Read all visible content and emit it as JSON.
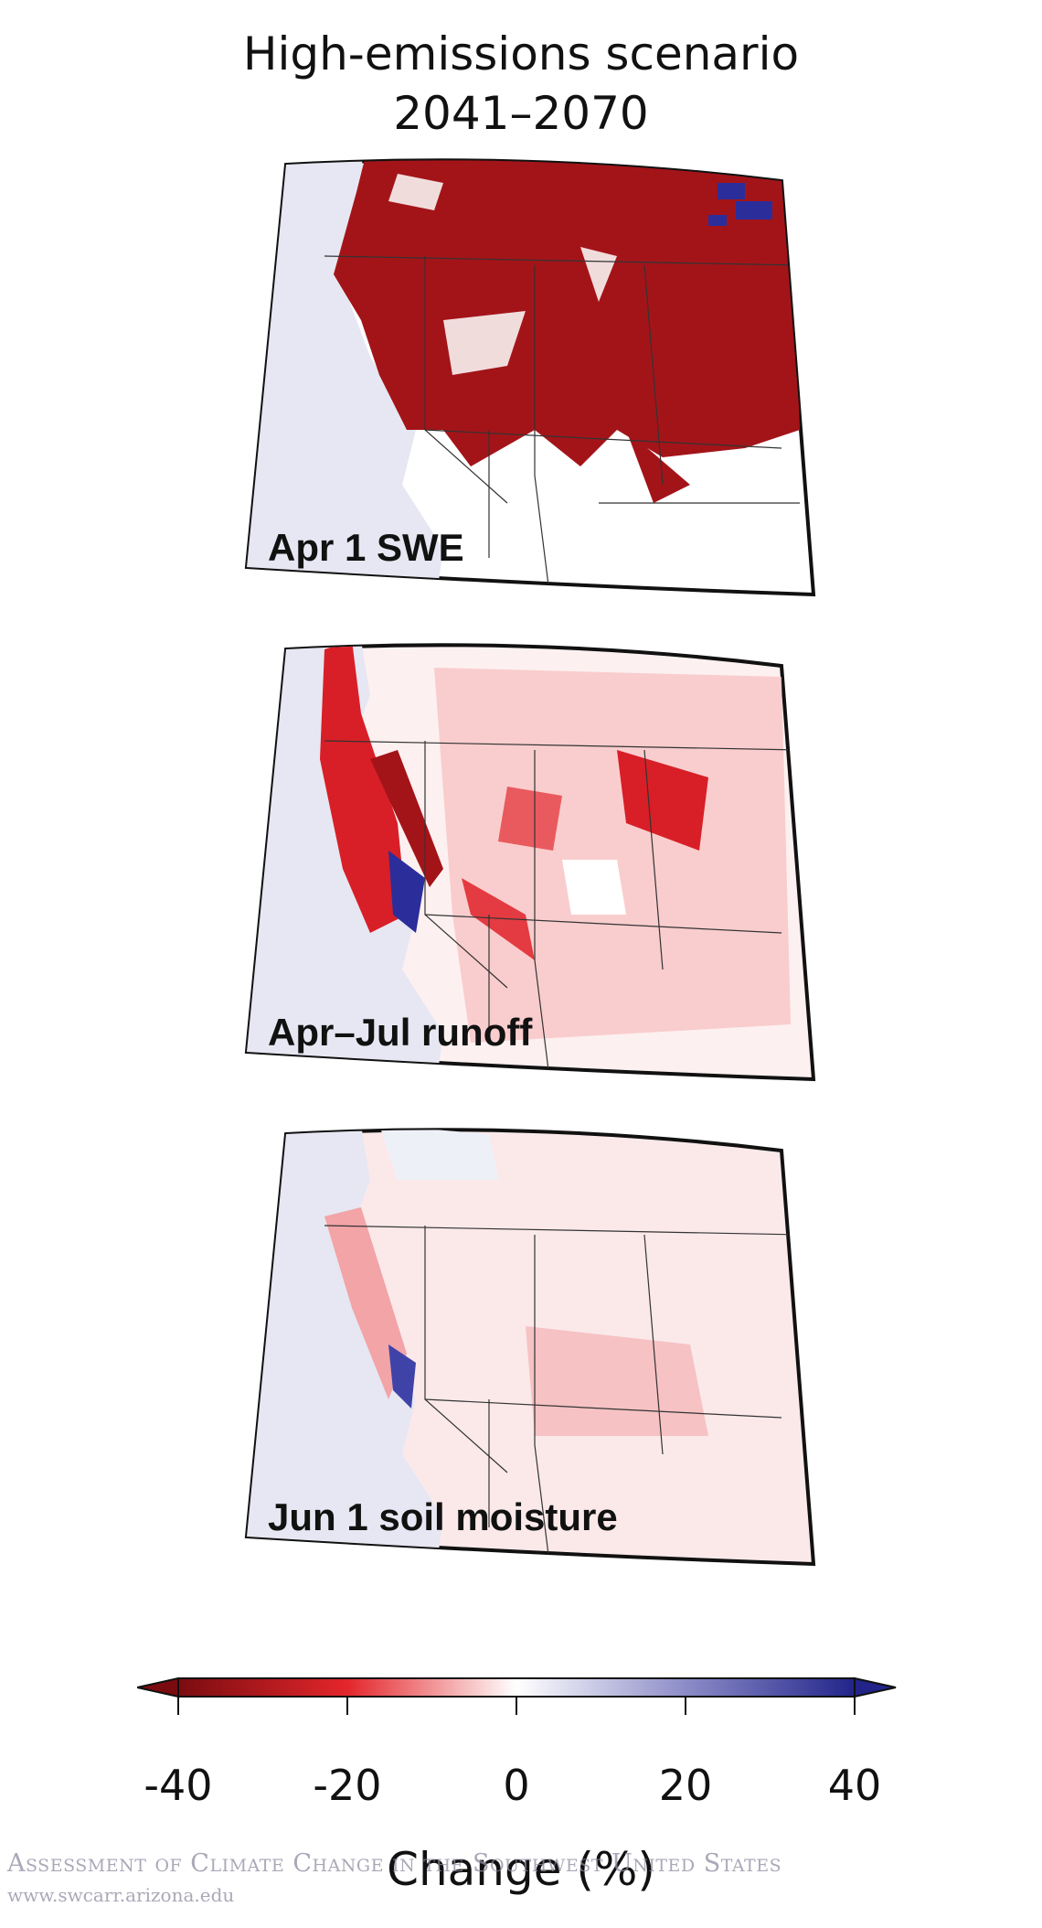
{
  "title": {
    "line1": "High-emissions scenario",
    "line2": "2041–2070"
  },
  "panels": [
    {
      "label": "Apr 1 SWE",
      "dominant": "strong-decrease"
    },
    {
      "label": "Apr–Jul runoff",
      "dominant": "moderate-decrease"
    },
    {
      "label": "Jun 1 soil moisture",
      "dominant": "slight-decrease"
    }
  ],
  "colorbar": {
    "ticks": [
      "-40",
      "-20",
      "0",
      "20",
      "40"
    ],
    "range": [
      -40,
      40
    ],
    "axis_label": "Change (%)",
    "colors": {
      "low": "#7a0c10",
      "mid_low": "#e3262b",
      "zero": "#ffffff",
      "mid_high": "#8c8cc8",
      "high": "#22248a"
    }
  },
  "watermark": {
    "text": "Assessment of Climate Change in the Southwest United States",
    "url": "www.swcarr.arizona.edu"
  }
}
